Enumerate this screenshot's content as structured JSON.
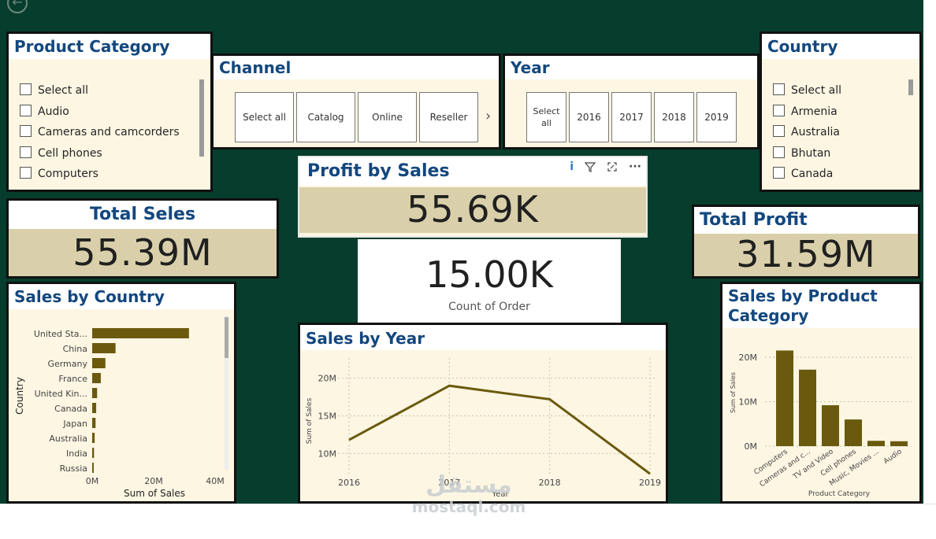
{
  "colors": {
    "canvas": "#073d2c",
    "panel": "#fdf6e3",
    "title": "#13477e",
    "bar": "#6b5a0e",
    "kpi": "#d9d0ab"
  },
  "back_icon": "←",
  "product_category": {
    "title": "Product Category",
    "items": [
      "Select all",
      "Audio",
      "Cameras and camcorders",
      "Cell phones",
      "Computers"
    ]
  },
  "channel": {
    "title": "Channel",
    "items": [
      "Select all",
      "Catalog",
      "Online",
      "Reseller"
    ],
    "more": "›"
  },
  "year": {
    "title": "Year",
    "items": [
      "Select all",
      "2016",
      "2017",
      "2018",
      "2019"
    ]
  },
  "country": {
    "title": "Country",
    "items": [
      "Select all",
      "Armenia",
      "Australia",
      "Bhutan",
      "Canada"
    ]
  },
  "total_sales": {
    "title": "Total Seles",
    "value": "55.39M"
  },
  "profit_by_sales": {
    "title": "Profit by Sales",
    "value": "55.69K",
    "toolbar": {
      "info": "i",
      "filter": "filter-icon",
      "focus": "focus-icon",
      "more": "···"
    }
  },
  "count_order": {
    "value": "15.00K",
    "label": "Count of Order"
  },
  "total_profit": {
    "title": "Total Profit",
    "value": "31.59M"
  },
  "sales_by_country": {
    "title": "Sales by Country",
    "chart_data": {
      "type": "bar",
      "orientation": "horizontal",
      "categories": [
        "United Sta...",
        "China",
        "Germany",
        "France",
        "United Kin...",
        "Canada",
        "Japan",
        "Australia",
        "India",
        "Russia"
      ],
      "values": [
        31.5,
        7.6,
        4.3,
        2.8,
        1.6,
        1.3,
        1.1,
        0.8,
        0.6,
        0.5
      ],
      "xlabel": "Sum of Sales",
      "ylabel": "Country",
      "xlim": [
        0,
        40
      ],
      "ticks": [
        "0M",
        "20M",
        "40M"
      ]
    }
  },
  "sales_by_year": {
    "title": "Sales by Year",
    "chart_data": {
      "type": "line",
      "x": [
        "2016",
        "2017",
        "2018",
        "2019"
      ],
      "values": [
        11.8,
        19.0,
        17.2,
        7.3
      ],
      "xlabel": "Year",
      "ylabel": "Sum of Sales",
      "yticks": [
        "10M",
        "15M",
        "20M"
      ]
    }
  },
  "sales_by_product_category": {
    "title": "Sales by Product Category",
    "chart_data": {
      "type": "bar",
      "categories": [
        "Computers",
        "Cameras and c...",
        "TV and Video",
        "Cell phones",
        "Music, Movies ...",
        "Audio"
      ],
      "values": [
        21.5,
        17.2,
        9.2,
        6.0,
        1.2,
        1.1
      ],
      "xlabel": "Product Category",
      "ylabel": "Sum of Sales",
      "yticks": [
        "0M",
        "10M",
        "20M"
      ],
      "ylim": [
        0,
        23
      ]
    }
  },
  "watermark": {
    "arabic": "مستقل",
    "latin": "mostaql.com"
  }
}
